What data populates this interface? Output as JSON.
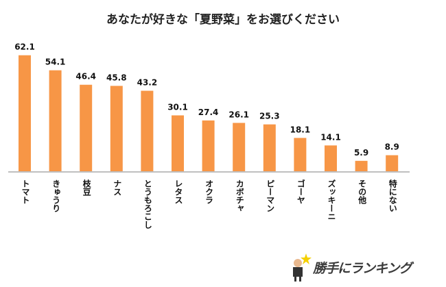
{
  "chart_data": {
    "type": "bar",
    "title": "あなたが好きな「夏野菜」をお選びください",
    "categories": [
      "トマト",
      "きゅうり",
      "枝豆",
      "ナス",
      "とうもろこし",
      "レタス",
      "オクラ",
      "カボチャ",
      "ピーマン",
      "ゴーヤ",
      "ズッキーニ",
      "その他",
      "特にない"
    ],
    "values": [
      62.1,
      54.1,
      46.4,
      45.8,
      43.2,
      30.1,
      27.4,
      26.1,
      25.3,
      18.1,
      14.1,
      5.9,
      8.9
    ],
    "value_labels": [
      "62.1",
      "54.1",
      "46.4",
      "45.8",
      "43.2",
      "30.1",
      "27.4",
      "26.1",
      "25.3",
      "18.1",
      "14.1",
      "5.9",
      "8.9"
    ],
    "xlabel": "",
    "ylabel": "",
    "ylim": [
      0,
      70
    ],
    "grid": false,
    "legend": "none",
    "bar_color": "#F79646",
    "axis_color": "#BFBFBF"
  },
  "logo": {
    "text": "勝手にランキング"
  }
}
